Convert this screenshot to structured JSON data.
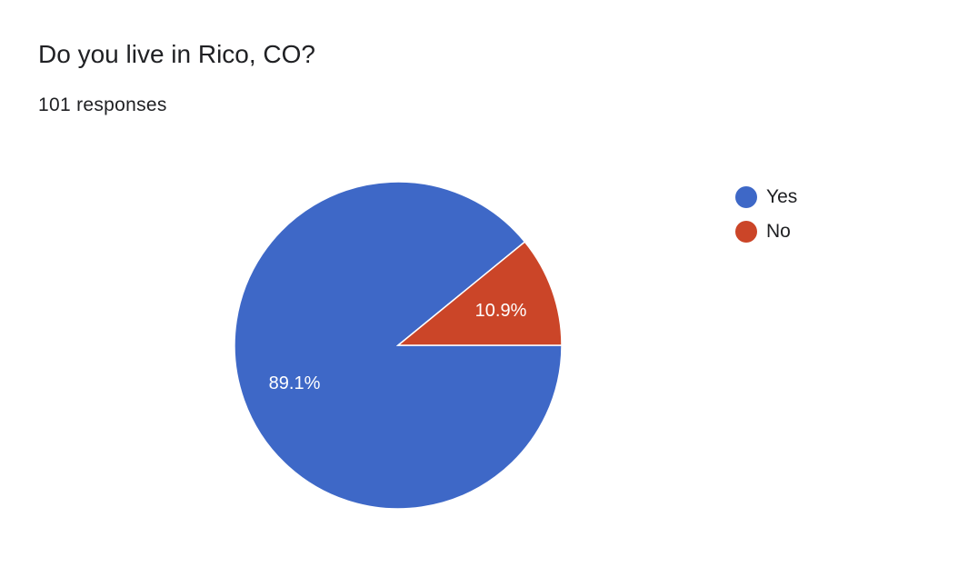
{
  "header": {
    "question": "Do you live in Rico, CO?",
    "responses": "101 responses"
  },
  "chart_data": {
    "type": "pie",
    "categories": [
      "Yes",
      "No"
    ],
    "values": [
      89.1,
      10.9
    ],
    "value_labels": [
      "89.1%",
      "10.9%"
    ],
    "colors": [
      "#3e68c7",
      "#cb4528"
    ],
    "legend": "right"
  }
}
